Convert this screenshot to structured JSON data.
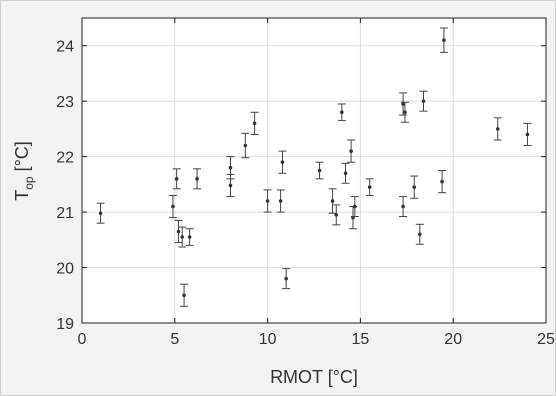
{
  "chart_data": {
    "type": "scatter",
    "title": "",
    "xlabel": "RMOT [°C]",
    "ylabel_main": "T",
    "ylabel_sub": "op",
    "ylabel_unit": " [°C]",
    "xlim": [
      0,
      25
    ],
    "ylim": [
      19,
      24.5
    ],
    "xticks": [
      0,
      5,
      10,
      15,
      20,
      25
    ],
    "yticks": [
      19,
      20,
      21,
      22,
      23,
      24
    ],
    "grid": true,
    "points": [
      {
        "x": 1.0,
        "y": 20.98,
        "err": 0.18
      },
      {
        "x": 4.9,
        "y": 21.1,
        "err": 0.2
      },
      {
        "x": 5.1,
        "y": 21.6,
        "err": 0.18
      },
      {
        "x": 5.2,
        "y": 20.65,
        "err": 0.2
      },
      {
        "x": 5.4,
        "y": 20.55,
        "err": 0.18
      },
      {
        "x": 5.5,
        "y": 19.5,
        "err": 0.2
      },
      {
        "x": 5.8,
        "y": 20.55,
        "err": 0.15
      },
      {
        "x": 6.2,
        "y": 21.6,
        "err": 0.18
      },
      {
        "x": 8.0,
        "y": 21.8,
        "err": 0.2
      },
      {
        "x": 8.0,
        "y": 21.48,
        "err": 0.2
      },
      {
        "x": 8.8,
        "y": 22.2,
        "err": 0.22
      },
      {
        "x": 9.3,
        "y": 22.6,
        "err": 0.2
      },
      {
        "x": 10.0,
        "y": 21.2,
        "err": 0.2
      },
      {
        "x": 10.7,
        "y": 21.2,
        "err": 0.2
      },
      {
        "x": 10.8,
        "y": 21.9,
        "err": 0.2
      },
      {
        "x": 11.0,
        "y": 19.8,
        "err": 0.18
      },
      {
        "x": 12.8,
        "y": 21.75,
        "err": 0.15
      },
      {
        "x": 13.5,
        "y": 21.2,
        "err": 0.22
      },
      {
        "x": 13.7,
        "y": 20.95,
        "err": 0.18
      },
      {
        "x": 14.0,
        "y": 22.8,
        "err": 0.15
      },
      {
        "x": 14.2,
        "y": 21.7,
        "err": 0.18
      },
      {
        "x": 14.5,
        "y": 22.1,
        "err": 0.2
      },
      {
        "x": 14.6,
        "y": 20.9,
        "err": 0.2
      },
      {
        "x": 14.7,
        "y": 21.1,
        "err": 0.18
      },
      {
        "x": 15.5,
        "y": 21.45,
        "err": 0.15
      },
      {
        "x": 17.3,
        "y": 22.95,
        "err": 0.2
      },
      {
        "x": 17.4,
        "y": 22.8,
        "err": 0.18
      },
      {
        "x": 17.3,
        "y": 21.1,
        "err": 0.18
      },
      {
        "x": 17.9,
        "y": 21.45,
        "err": 0.2
      },
      {
        "x": 18.2,
        "y": 20.6,
        "err": 0.18
      },
      {
        "x": 18.4,
        "y": 23.0,
        "err": 0.18
      },
      {
        "x": 19.4,
        "y": 21.55,
        "err": 0.2
      },
      {
        "x": 19.5,
        "y": 24.1,
        "err": 0.22
      },
      {
        "x": 22.4,
        "y": 22.5,
        "err": 0.2
      },
      {
        "x": 24.0,
        "y": 22.4,
        "err": 0.2
      }
    ]
  }
}
